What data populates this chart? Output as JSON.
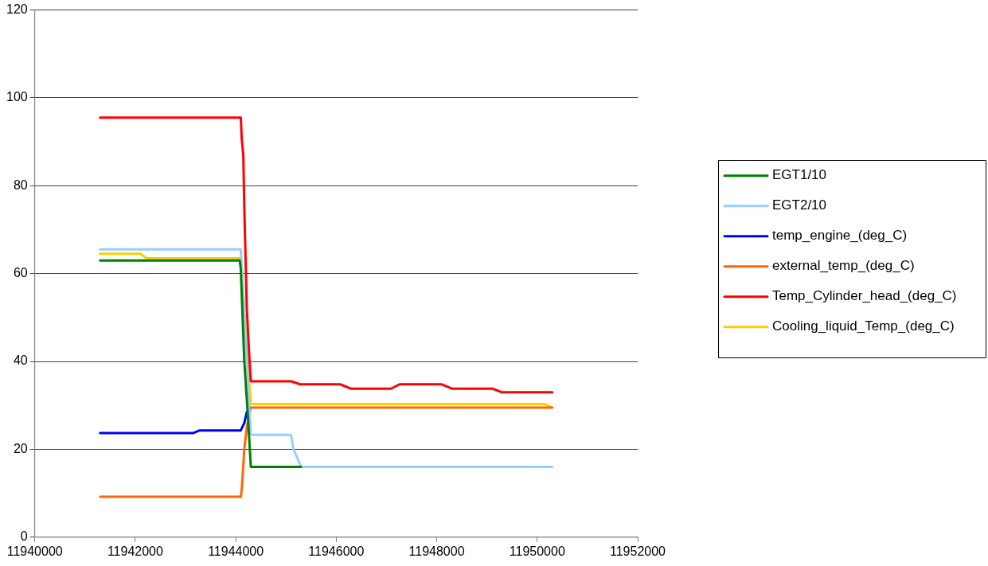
{
  "chart_data": {
    "type": "line",
    "xlim": [
      11940000,
      11952000
    ],
    "xticks": [
      11940000,
      11942000,
      11944000,
      11946000,
      11948000,
      11950000,
      11952000
    ],
    "ylim": [
      0,
      120
    ],
    "yticks": [
      0,
      20,
      40,
      60,
      80,
      100,
      120
    ],
    "grid": "y",
    "legend": "right",
    "marker": "none",
    "line_style": "solid",
    "series": [
      {
        "name": "EGT1/10",
        "color": "#008000",
        "x": [
          11941300,
          11944080,
          11944100,
          11944170,
          11944240,
          11944270,
          11944300,
          11945300
        ],
        "values": [
          63,
          63,
          61,
          40,
          28,
          22,
          16,
          16
        ]
      },
      {
        "name": "EGT2/10",
        "color": "#99ccff",
        "x": [
          11941300,
          11944100,
          11944300,
          11945100,
          11945150,
          11945300,
          11950300
        ],
        "values": [
          65.5,
          65.5,
          23.3,
          23.3,
          20,
          16,
          16
        ]
      },
      {
        "name": "temp_engine_(deg_C)",
        "color": "#0000ff",
        "x": [
          11941300,
          11943150,
          11943280,
          11944100,
          11944170,
          11944220,
          11944280
        ],
        "values": [
          23.7,
          23.7,
          24.3,
          24.3,
          26,
          28.5,
          29.5
        ]
      },
      {
        "name": "external_temp_(deg_C)",
        "color": "#ff6600",
        "x": [
          11941300,
          11944100,
          11944120,
          11944170,
          11944220,
          11944300,
          11950300
        ],
        "values": [
          9.2,
          9.2,
          11,
          20,
          25,
          29.5,
          29.5
        ]
      },
      {
        "name": "Temp_Cylinder_head_(deg_C)",
        "color": "#ff0000",
        "x": [
          11941300,
          11944100,
          11944120,
          11944150,
          11944170,
          11944220,
          11944270,
          11944300,
          11945100,
          11945280,
          11946080,
          11946300,
          11947090,
          11947260,
          11948100,
          11948310,
          11949120,
          11949290,
          11950300
        ],
        "values": [
          95.5,
          95.5,
          90.5,
          87,
          75,
          52,
          41,
          35.5,
          35.5,
          34.8,
          34.8,
          33.8,
          33.8,
          34.8,
          34.8,
          33.8,
          33.8,
          33,
          33
        ]
      },
      {
        "name": "Cooling_liquid_Temp_(deg_C)",
        "color": "#ffcc00",
        "x": [
          11941300,
          11942100,
          11942230,
          11944100,
          11944150,
          11944220,
          11944300,
          11950140,
          11950300
        ],
        "values": [
          64.5,
          64.5,
          63.5,
          63.5,
          55,
          43,
          30.3,
          30.3,
          29.5
        ]
      }
    ]
  }
}
